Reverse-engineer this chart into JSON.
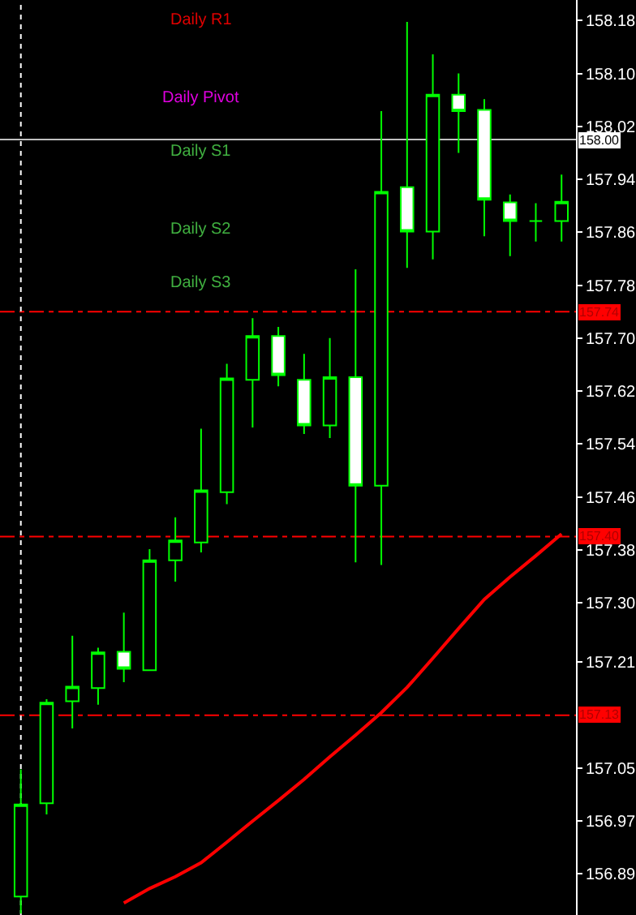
{
  "chart_data": {
    "type": "candlestick",
    "categories": [
      null,
      null,
      null,
      null,
      null,
      null,
      null,
      null,
      null,
      null,
      null,
      null,
      null,
      null,
      null,
      null,
      null,
      null,
      null,
      null,
      null,
      null
    ],
    "series": [
      {
        "color": "#00ff00",
        "ohlc": [
          [
            156.856,
            157.048,
            156.83,
            156.995
          ],
          [
            156.997,
            157.154,
            156.98,
            157.149
          ],
          [
            157.151,
            157.25,
            157.11,
            157.173
          ],
          [
            157.171,
            157.232,
            157.146,
            157.225
          ],
          [
            157.226,
            157.285,
            157.18,
            157.2
          ],
          [
            157.198,
            157.381,
            157.198,
            157.364
          ],
          [
            157.364,
            157.429,
            157.332,
            157.394
          ],
          [
            157.391,
            157.563,
            157.376,
            157.47
          ],
          [
            157.467,
            157.661,
            157.449,
            157.639
          ],
          [
            157.637,
            157.73,
            157.565,
            157.703
          ],
          [
            157.703,
            157.717,
            157.627,
            157.644
          ],
          [
            157.637,
            157.676,
            157.555,
            157.568
          ],
          [
            157.568,
            157.7,
            157.549,
            157.641
          ],
          [
            157.641,
            157.804,
            157.361,
            157.477
          ],
          [
            157.477,
            158.043,
            157.357,
            157.921
          ],
          [
            157.928,
            158.178,
            157.806,
            157.861
          ],
          [
            157.861,
            158.129,
            157.819,
            158.068
          ],
          [
            158.068,
            158.1,
            157.98,
            158.043
          ],
          [
            158.045,
            158.061,
            157.854,
            157.909
          ],
          [
            157.905,
            157.917,
            157.824,
            157.877
          ],
          [
            157.877,
            157.904,
            157.846,
            157.877
          ],
          [
            157.877,
            157.947,
            157.846,
            157.906
          ]
        ]
      },
      {
        "type": "line",
        "color": "#ff0000",
        "values": [
          null,
          null,
          null,
          null,
          156.846,
          156.868,
          156.886,
          156.907,
          156.938,
          156.97,
          157.001,
          157.033,
          157.067,
          157.1,
          157.134,
          157.172,
          157.216,
          157.261,
          157.305,
          157.339,
          157.371,
          157.404
        ]
      }
    ],
    "ylim": [
      156.828,
      158.211
    ],
    "yticks": [
      158.18,
      {
        "value": 158.1,
        "label": "158.10"
      },
      158.02,
      157.94,
      157.86,
      157.78,
      {
        "value": 157.7,
        "label": "157.70"
      },
      157.62,
      157.54,
      157.46,
      157.38,
      {
        "value": 157.3,
        "label": "157.30"
      },
      157.21,
      157.05,
      156.97,
      156.89
    ],
    "ref_lines": [
      {
        "axis": "y",
        "value": 158.0,
        "label": "158.00",
        "color": "#c0c0c0",
        "line_style": "solid"
      },
      {
        "axis": "y",
        "value": 157.74,
        "label": "157.74",
        "color": "#ff0000",
        "line_style": "dashdot"
      },
      {
        "axis": "y",
        "value": 157.4,
        "label": "157.40",
        "color": "#ff0000",
        "line_style": "dashdot"
      },
      {
        "axis": "y",
        "value": 157.13,
        "label": "157.13",
        "color": "#ff0000",
        "line_style": "dashdot"
      }
    ],
    "annotations": [
      "Daily R1",
      "Daily Pivot",
      "Daily S1",
      "Daily S2",
      "Daily S3"
    ],
    "tick_labels": "y",
    "grid": false
  }
}
